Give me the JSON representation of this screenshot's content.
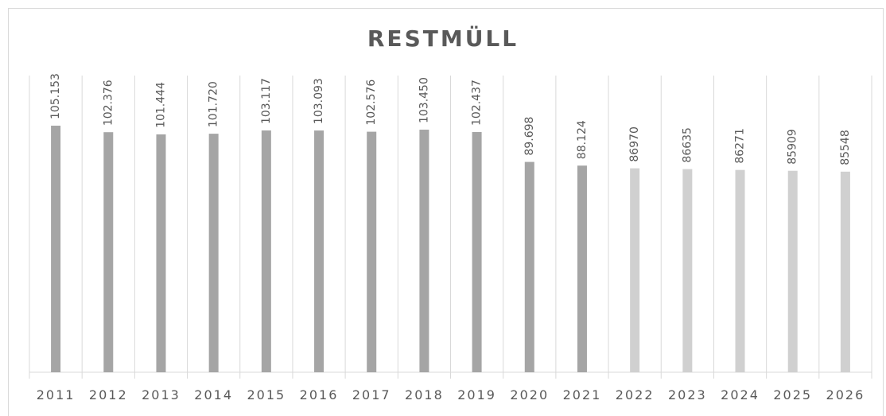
{
  "chart_data": {
    "type": "bar",
    "title": "RESTMÜLL",
    "categories": [
      "2011",
      "2012",
      "2013",
      "2014",
      "2015",
      "2016",
      "2017",
      "2018",
      "2019",
      "2020",
      "2021",
      "2022",
      "2023",
      "2024",
      "2025",
      "2026"
    ],
    "values": [
      105153,
      102376,
      101444,
      101720,
      103117,
      103093,
      102576,
      103450,
      102437,
      89698,
      88124,
      86970,
      86635,
      86271,
      85909,
      85548
    ],
    "value_labels": [
      "105.153",
      "102.376",
      "101.444",
      "101.720",
      "103.117",
      "103.093",
      "102.576",
      "103.450",
      "102.437",
      "89.698",
      "88.124",
      "86970",
      "86635",
      "86271",
      "85909",
      "85548"
    ],
    "colors": [
      "#a5a5a5",
      "#a5a5a5",
      "#a5a5a5",
      "#a5a5a5",
      "#a5a5a5",
      "#a5a5a5",
      "#a5a5a5",
      "#a5a5a5",
      "#a5a5a5",
      "#a5a5a5",
      "#a5a5a5",
      "#d0d0d0",
      "#d0d0d0",
      "#d0d0d0",
      "#d0d0d0",
      "#d0d0d0"
    ]
  }
}
